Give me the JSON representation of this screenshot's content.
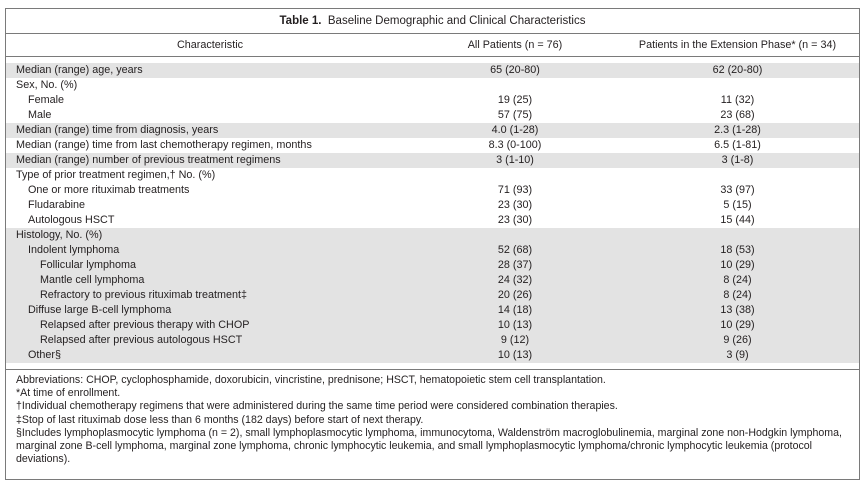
{
  "table": {
    "title_bold": "Table 1.",
    "title_rest": "Baseline Demographic and Clinical Characteristics",
    "headers": [
      "Characteristic",
      "All Patients (n = 76)",
      "Patients in the Extension Phase* (n = 34)"
    ],
    "rows": [
      {
        "label": "Median (range) age, years",
        "all": "65 (20-80)",
        "ext": "62 (20-80)",
        "indent": 0,
        "shade": true
      },
      {
        "label": "Sex, No. (%)",
        "all": "",
        "ext": "",
        "indent": 0,
        "shade": false
      },
      {
        "label": "Female",
        "all": "19 (25)",
        "ext": "11 (32)",
        "indent": 1,
        "shade": false
      },
      {
        "label": "Male",
        "all": "57 (75)",
        "ext": "23 (68)",
        "indent": 1,
        "shade": false
      },
      {
        "label": "Median (range) time from diagnosis, years",
        "all": "4.0 (1-28)",
        "ext": "2.3 (1-28)",
        "indent": 0,
        "shade": true
      },
      {
        "label": "Median (range) time from last chemotherapy regimen, months",
        "all": "8.3 (0-100)",
        "ext": "6.5 (1-81)",
        "indent": 0,
        "shade": false
      },
      {
        "label": "Median (range) number of previous treatment regimens",
        "all": "3 (1-10)",
        "ext": "3 (1-8)",
        "indent": 0,
        "shade": true
      },
      {
        "label": "Type of prior treatment regimen,† No. (%)",
        "all": "",
        "ext": "",
        "indent": 0,
        "shade": false
      },
      {
        "label": "One or more rituximab treatments",
        "all": "71 (93)",
        "ext": "33 (97)",
        "indent": 1,
        "shade": false
      },
      {
        "label": "Fludarabine",
        "all": "23 (30)",
        "ext": "5 (15)",
        "indent": 1,
        "shade": false
      },
      {
        "label": "Autologous HSCT",
        "all": "23 (30)",
        "ext": "15 (44)",
        "indent": 1,
        "shade": false
      },
      {
        "label": "Histology, No. (%)",
        "all": "",
        "ext": "",
        "indent": 0,
        "shade": true
      },
      {
        "label": "Indolent lymphoma",
        "all": "52 (68)",
        "ext": "18 (53)",
        "indent": 1,
        "shade": true
      },
      {
        "label": "Follicular lymphoma",
        "all": "28 (37)",
        "ext": "10 (29)",
        "indent": 2,
        "shade": true
      },
      {
        "label": "Mantle cell lymphoma",
        "all": "24 (32)",
        "ext": "8 (24)",
        "indent": 2,
        "shade": true
      },
      {
        "label": "Refractory to previous rituximab treatment‡",
        "all": "20 (26)",
        "ext": "8 (24)",
        "indent": 2,
        "shade": true
      },
      {
        "label": "Diffuse large B-cell lymphoma",
        "all": "14 (18)",
        "ext": "13 (38)",
        "indent": 1,
        "shade": true
      },
      {
        "label": "Relapsed after previous therapy with CHOP",
        "all": "10 (13)",
        "ext": "10 (29)",
        "indent": 2,
        "shade": true
      },
      {
        "label": "Relapsed after previous autologous HSCT",
        "all": "9 (12)",
        "ext": "9 (26)",
        "indent": 2,
        "shade": true
      },
      {
        "label": "Other§",
        "all": "10 (13)",
        "ext": "3 (9)",
        "indent": 1,
        "shade": true
      }
    ],
    "footnotes": [
      "Abbreviations: CHOP, cyclophosphamide, doxorubicin, vincristine, prednisone; HSCT, hematopoietic stem cell transplantation.",
      "*At time of enrollment.",
      "†Individual chemotherapy regimens that were administered during the same time period were considered combination therapies.",
      "‡Stop of last rituximab dose less than 6 months (182 days) before start of next therapy.",
      "§Includes lymphoplasmocytic lymphoma (n = 2), small lymphoplasmocytic lymphoma, immunocytoma, Waldenström macroglobulinemia, marginal zone non-Hodgkin lymphoma, marginal zone B-cell lymphoma, marginal zone lymphoma, chronic lymphocytic leukemia, and small lymphoplasmocytic lymphoma/chronic lymphocytic leukemia (protocol deviations)."
    ]
  }
}
